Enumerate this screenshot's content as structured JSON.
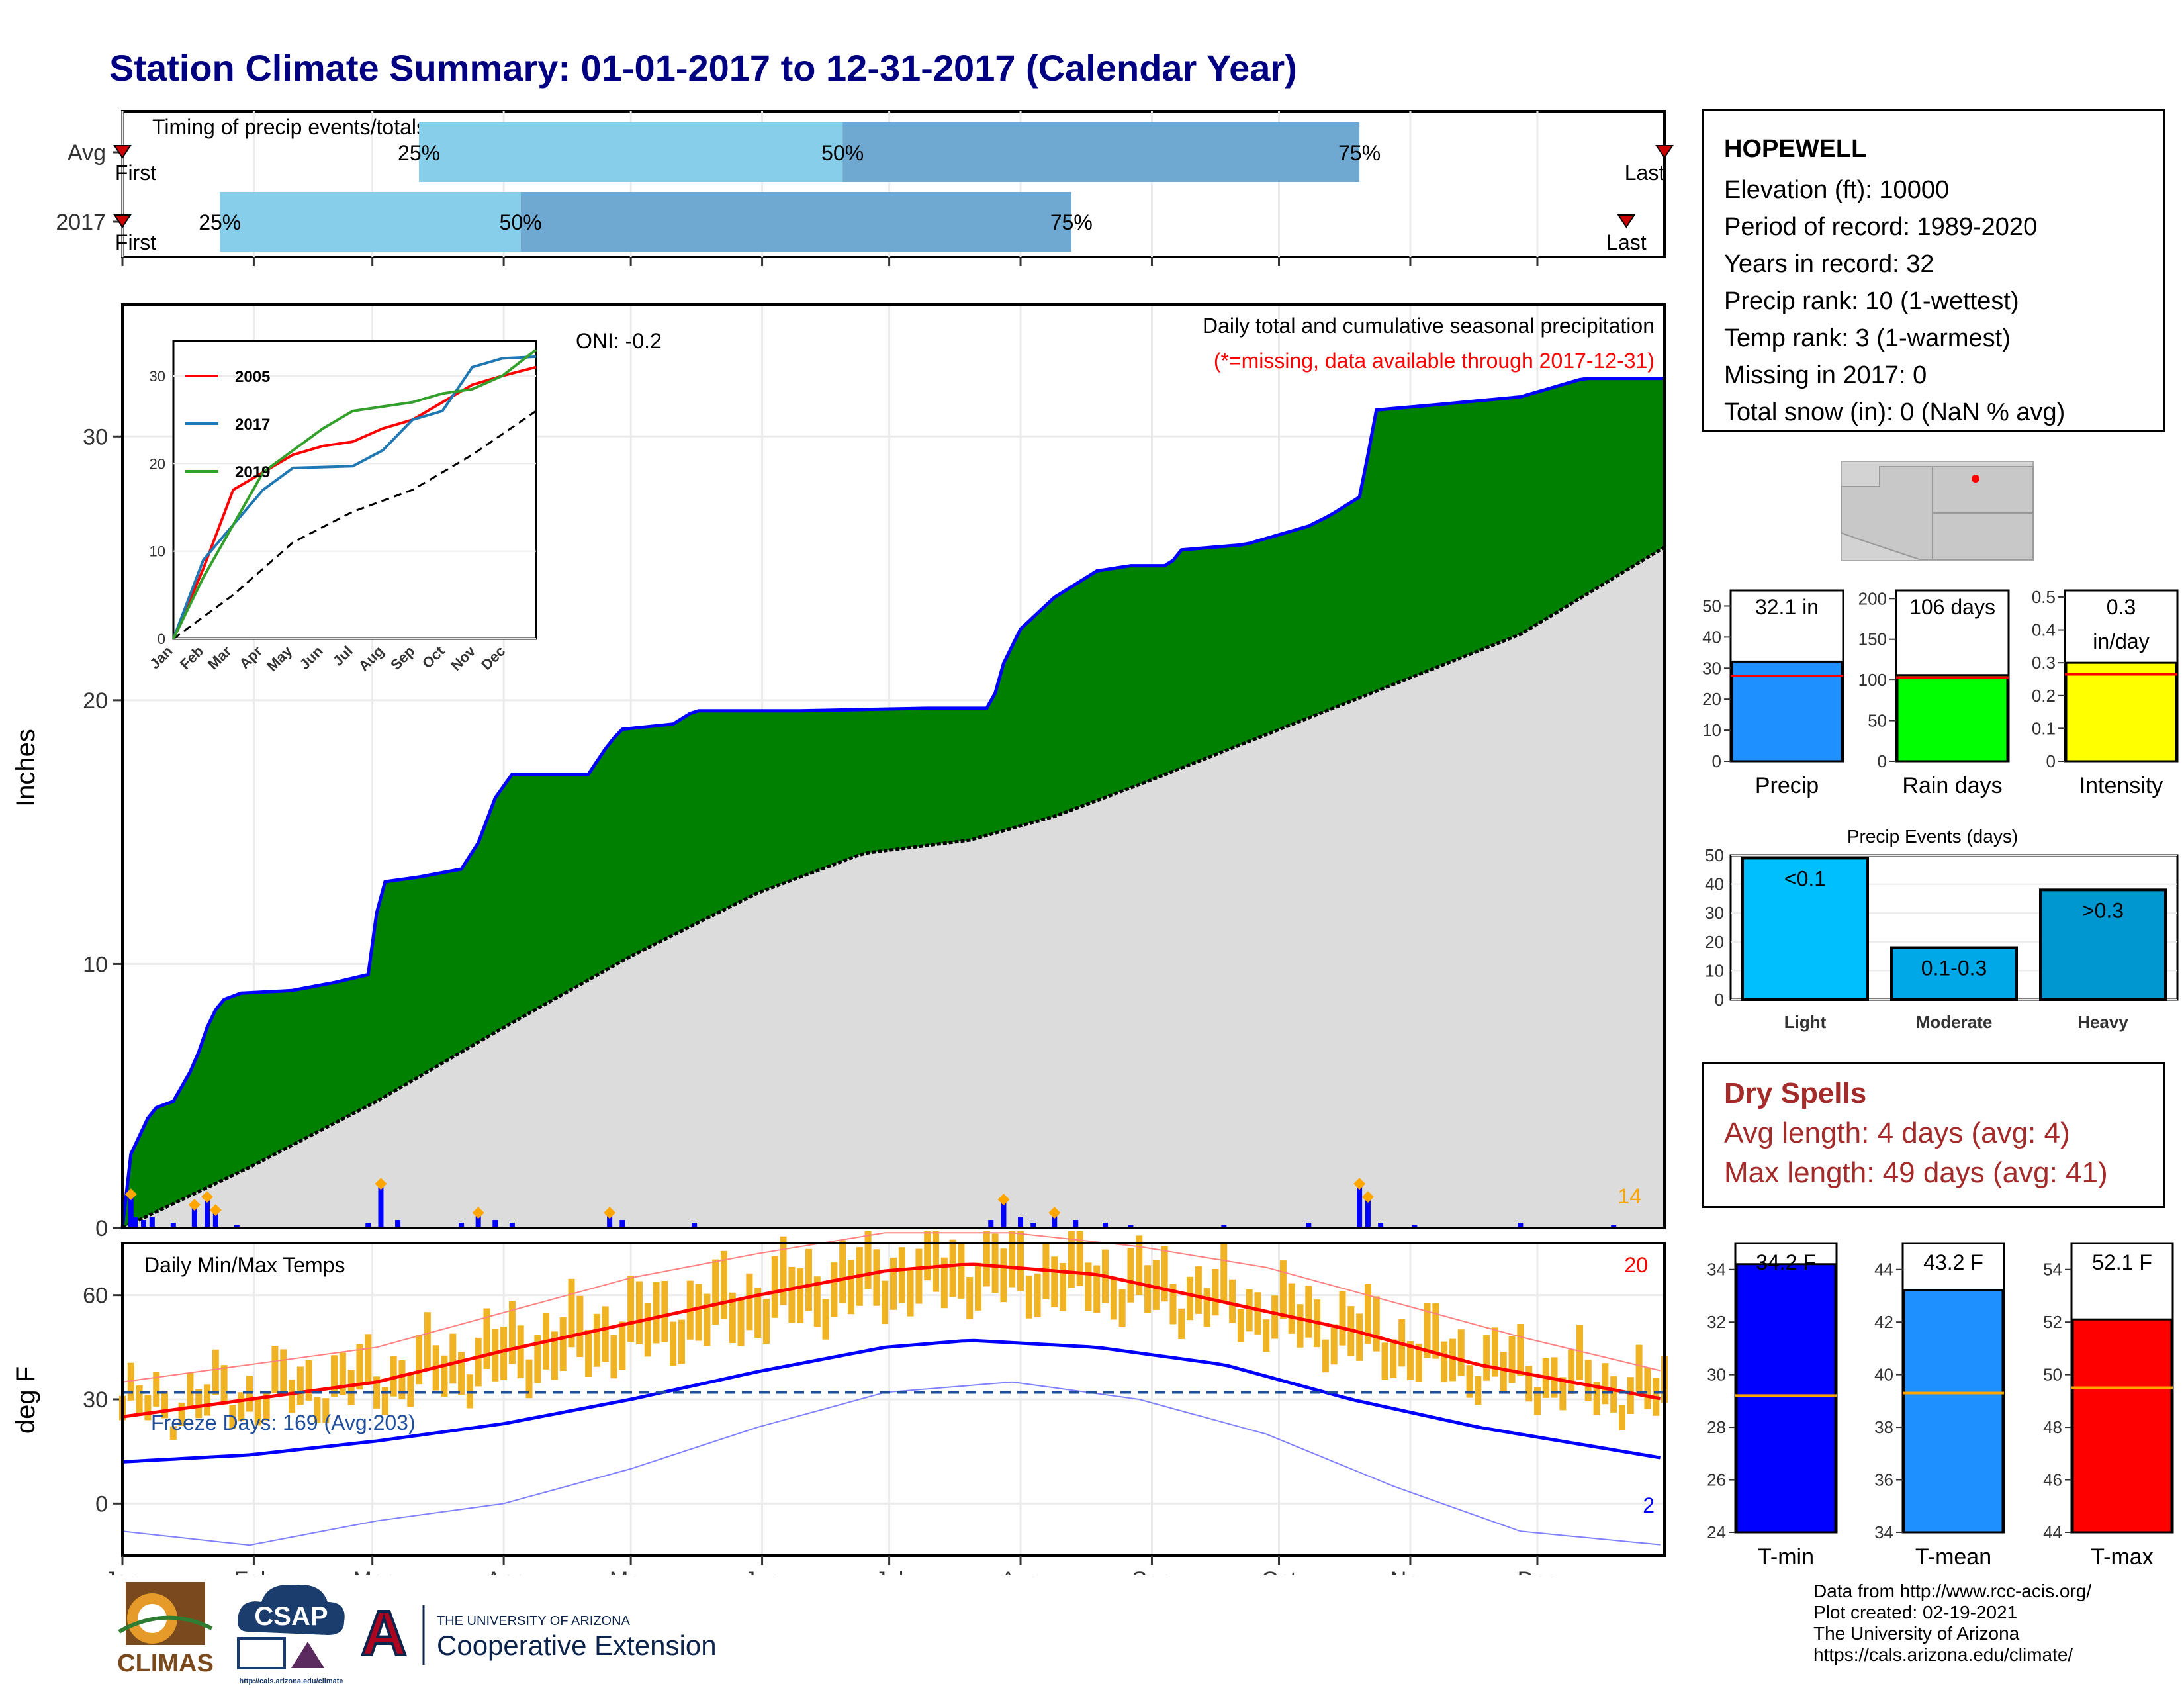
{
  "title": "Station Climate Summary: 01-01-2017 to 12-31-2017 (Calendar Year)",
  "station": {
    "name": "HOPEWELL",
    "lines": [
      "Elevation (ft): 10000",
      "Period of record: 1989-2020",
      "Years in record: 32",
      "Precip rank: 10 (1-wettest)",
      "Temp rank: 3 (1-warmest)",
      "Missing in 2017: 0",
      "Total snow (in): 0 (NaN % avg)"
    ]
  },
  "dry_spells": {
    "heading": "Dry Spells",
    "avg": "Avg length: 4 days (avg: 4)",
    "max": "Max length: 49 days (avg: 41)"
  },
  "footer": [
    "Data from http://www.rcc-acis.org/",
    "Plot created: 02-19-2021",
    "The University of Arizona",
    "https://cals.arizona.edu/climate/"
  ],
  "logos": {
    "climas": "CLIMAS",
    "csap": "CSAP",
    "csap_url": "http://cals.arizona.edu/climate",
    "ua_small": "THE UNIVERSITY OF ARIZONA",
    "ua_big": "Cooperative Extension",
    "ua_letter": "A"
  },
  "colors": {
    "navy": "#000080",
    "green": "#008000",
    "blue": "#0000ff",
    "lightblue": "#87ceeb",
    "steel": "#6fa8d0",
    "gold": "#f0b323",
    "red": "#ff0000",
    "drybrown": "#a52a2a"
  },
  "months": [
    "Jan",
    "Feb",
    "Mar",
    "Apr",
    "May",
    "Jun",
    "Jul",
    "Aug",
    "Sep",
    "Oct",
    "Nov",
    "Dec"
  ],
  "chart_data": [
    {
      "type": "bar",
      "title": "Timing of precip events/totals",
      "rows": [
        {
          "label": "Avg",
          "first": "First",
          "last": "Last",
          "q25_day": 70,
          "q50_day": 170,
          "q75_day": 292
        },
        {
          "label": "2017",
          "first": "First",
          "last": "Last",
          "q25_day": 23,
          "q50_day": 94,
          "q75_day": 224,
          "last_day": 355
        }
      ],
      "quartile_labels": [
        "25%",
        "50%",
        "75%"
      ]
    },
    {
      "type": "area",
      "title": "Daily total and cumulative seasonal precipitation",
      "subtitle": "(*=missing, data available through 2017-12-31)",
      "ylabel": "Inches",
      "ylim": [
        0,
        35
      ],
      "yticks": [
        0,
        10,
        20,
        30
      ],
      "oni": "ONI: -0.2",
      "extreme_count": "14",
      "cumulative_2017": [
        [
          0,
          0
        ],
        [
          2,
          2.8
        ],
        [
          7,
          4.5
        ],
        [
          12,
          4.8
        ],
        [
          17,
          6.2
        ],
        [
          20,
          7.6
        ],
        [
          23,
          8.6
        ],
        [
          28,
          8.9
        ],
        [
          40,
          9.0
        ],
        [
          50,
          9.3
        ],
        [
          58,
          9.6
        ],
        [
          61,
          13.1
        ],
        [
          70,
          13.3
        ],
        [
          80,
          13.6
        ],
        [
          84,
          14.6
        ],
        [
          88,
          16.3
        ],
        [
          92,
          17.2
        ],
        [
          110,
          17.2
        ],
        [
          115,
          18.4
        ],
        [
          118,
          18.9
        ],
        [
          130,
          19.1
        ],
        [
          135,
          19.6
        ],
        [
          160,
          19.6
        ],
        [
          190,
          19.7
        ],
        [
          205,
          19.7
        ],
        [
          208,
          21.4
        ],
        [
          212,
          22.7
        ],
        [
          220,
          23.9
        ],
        [
          230,
          24.9
        ],
        [
          238,
          25.1
        ],
        [
          247,
          25.1
        ],
        [
          250,
          25.7
        ],
        [
          265,
          25.9
        ],
        [
          280,
          26.6
        ],
        [
          285,
          27.0
        ],
        [
          292,
          27.7
        ],
        [
          294,
          29.3
        ],
        [
          296,
          31.0
        ],
        [
          310,
          31.2
        ],
        [
          330,
          31.5
        ],
        [
          345,
          32.2
        ],
        [
          364,
          32.2
        ]
      ],
      "cumulative_avg": [
        [
          0,
          0
        ],
        [
          30,
          2.3
        ],
        [
          60,
          4.8
        ],
        [
          90,
          7.6
        ],
        [
          120,
          10.3
        ],
        [
          150,
          12.7
        ],
        [
          175,
          14.2
        ],
        [
          200,
          14.7
        ],
        [
          220,
          15.6
        ],
        [
          240,
          16.8
        ],
        [
          270,
          18.7
        ],
        [
          300,
          20.6
        ],
        [
          330,
          22.5
        ],
        [
          364,
          25.8
        ]
      ],
      "daily_2017": [
        [
          2,
          1.2
        ],
        [
          3,
          0.4
        ],
        [
          5,
          0.3
        ],
        [
          7,
          0.4
        ],
        [
          12,
          0.2
        ],
        [
          17,
          0.8
        ],
        [
          20,
          1.1
        ],
        [
          22,
          0.6
        ],
        [
          27,
          0.1
        ],
        [
          58,
          0.2
        ],
        [
          61,
          1.6
        ],
        [
          65,
          0.3
        ],
        [
          80,
          0.2
        ],
        [
          84,
          0.5
        ],
        [
          88,
          0.3
        ],
        [
          92,
          0.2
        ],
        [
          115,
          0.5
        ],
        [
          118,
          0.3
        ],
        [
          135,
          0.2
        ],
        [
          205,
          0.3
        ],
        [
          208,
          1.0
        ],
        [
          212,
          0.4
        ],
        [
          215,
          0.2
        ],
        [
          220,
          0.5
        ],
        [
          225,
          0.3
        ],
        [
          232,
          0.2
        ],
        [
          238,
          0.1
        ],
        [
          260,
          0.1
        ],
        [
          280,
          0.2
        ],
        [
          292,
          1.6
        ],
        [
          294,
          1.1
        ],
        [
          297,
          0.2
        ],
        [
          305,
          0.1
        ],
        [
          330,
          0.2
        ],
        [
          352,
          0.1
        ]
      ],
      "inset": {
        "type": "line",
        "ylim": [
          0,
          34
        ],
        "yticks": [
          0,
          10,
          20,
          30
        ],
        "series": [
          {
            "name": "2005",
            "color": "#ff0000",
            "values": [
              [
                0,
                0
              ],
              [
                30,
                8
              ],
              [
                60,
                17
              ],
              [
                90,
                19
              ],
              [
                120,
                21
              ],
              [
                150,
                22
              ],
              [
                180,
                22.5
              ],
              [
                210,
                24
              ],
              [
                240,
                25
              ],
              [
                270,
                27
              ],
              [
                300,
                29
              ],
              [
                330,
                30
              ],
              [
                364,
                31
              ]
            ]
          },
          {
            "name": "2017",
            "color": "#1f78b4",
            "values": [
              [
                0,
                0
              ],
              [
                30,
                9
              ],
              [
                60,
                13
              ],
              [
                90,
                17
              ],
              [
                120,
                19.5
              ],
              [
                150,
                19.6
              ],
              [
                180,
                19.7
              ],
              [
                210,
                21.5
              ],
              [
                240,
                25
              ],
              [
                270,
                26
              ],
              [
                300,
                31
              ],
              [
                330,
                32
              ],
              [
                364,
                32.2
              ]
            ]
          },
          {
            "name": "2019",
            "color": "#33a02c",
            "values": [
              [
                0,
                0
              ],
              [
                30,
                7
              ],
              [
                60,
                13
              ],
              [
                90,
                19
              ],
              [
                120,
                21.5
              ],
              [
                150,
                24
              ],
              [
                180,
                26
              ],
              [
                210,
                26.5
              ],
              [
                240,
                27
              ],
              [
                270,
                28
              ],
              [
                300,
                28.5
              ],
              [
                330,
                30
              ],
              [
                364,
                33
              ]
            ]
          }
        ],
        "avg_values": [
          [
            0,
            0
          ],
          [
            60,
            5
          ],
          [
            120,
            11
          ],
          [
            180,
            14.5
          ],
          [
            240,
            17
          ],
          [
            300,
            21
          ],
          [
            364,
            26
          ]
        ]
      }
    },
    {
      "type": "line",
      "title": "Daily Min/Max Temps",
      "ylabel": "deg F",
      "ylim": [
        -15,
        75
      ],
      "yticks": [
        0,
        30,
        60
      ],
      "freeze_label": "Freeze Days: 169 (Avg:203)",
      "record_high_count": "20",
      "record_low_count": "2",
      "freeze_line": 32,
      "avg_max": [
        [
          0,
          25
        ],
        [
          30,
          30
        ],
        [
          60,
          35
        ],
        [
          90,
          44
        ],
        [
          120,
          52
        ],
        [
          150,
          60
        ],
        [
          180,
          67
        ],
        [
          200,
          69
        ],
        [
          230,
          66
        ],
        [
          260,
          58
        ],
        [
          290,
          50
        ],
        [
          320,
          40
        ],
        [
          364,
          30
        ]
      ],
      "avg_min": [
        [
          0,
          12
        ],
        [
          30,
          14
        ],
        [
          60,
          18
        ],
        [
          90,
          23
        ],
        [
          120,
          30
        ],
        [
          150,
          38
        ],
        [
          180,
          45
        ],
        [
          200,
          47
        ],
        [
          230,
          45
        ],
        [
          260,
          40
        ],
        [
          290,
          30
        ],
        [
          320,
          22
        ],
        [
          364,
          13
        ]
      ],
      "rec_max": [
        [
          0,
          35
        ],
        [
          30,
          40
        ],
        [
          60,
          45
        ],
        [
          90,
          55
        ],
        [
          120,
          65
        ],
        [
          150,
          72
        ],
        [
          180,
          78
        ],
        [
          210,
          78
        ],
        [
          240,
          74
        ],
        [
          270,
          68
        ],
        [
          300,
          58
        ],
        [
          330,
          48
        ],
        [
          364,
          38
        ]
      ],
      "rec_min": [
        [
          0,
          -8
        ],
        [
          30,
          -12
        ],
        [
          60,
          -5
        ],
        [
          90,
          0
        ],
        [
          120,
          10
        ],
        [
          150,
          22
        ],
        [
          180,
          32
        ],
        [
          210,
          35
        ],
        [
          240,
          30
        ],
        [
          270,
          20
        ],
        [
          300,
          5
        ],
        [
          330,
          -8
        ],
        [
          364,
          -12
        ]
      ]
    },
    {
      "type": "bar",
      "categories": [
        "Precip",
        "Rain days",
        "Intensity"
      ],
      "values": [
        32.1,
        106,
        0.3
      ],
      "averages": [
        27.5,
        103,
        0.265
      ],
      "labels": [
        "32.1 in",
        "106 days",
        "0.3\nin/day"
      ],
      "ylims": [
        [
          0,
          55
        ],
        [
          0,
          210
        ],
        [
          0,
          0.52
        ]
      ],
      "yticks": [
        [
          0,
          10,
          20,
          30,
          40,
          50
        ],
        [
          0,
          50,
          100,
          150,
          200
        ],
        [
          0.0,
          0.1,
          0.2,
          0.3,
          0.4,
          0.5
        ]
      ]
    },
    {
      "type": "bar",
      "title": "Precip Events (days)",
      "categories": [
        "Light",
        "Moderate",
        "Heavy"
      ],
      "labels": [
        "<0.1",
        "0.1-0.3",
        ">0.3"
      ],
      "values": [
        49,
        18,
        38
      ],
      "ylim": [
        0,
        50
      ],
      "yticks": [
        0,
        10,
        20,
        30,
        40,
        50
      ]
    },
    {
      "type": "bar",
      "categories": [
        "T-min",
        "T-mean",
        "T-max"
      ],
      "values": [
        34.2,
        43.2,
        52.1
      ],
      "labels": [
        "34.2 F",
        "43.2 F",
        "52.1 F"
      ],
      "averages": [
        29.2,
        39.3,
        49.5
      ],
      "ylims": [
        [
          24,
          35
        ],
        [
          34,
          45
        ],
        [
          44,
          55
        ]
      ],
      "yticks": [
        [
          24,
          26,
          28,
          30,
          32,
          34
        ],
        [
          34,
          36,
          38,
          40,
          42,
          44
        ],
        [
          44,
          46,
          48,
          50,
          52,
          54
        ]
      ]
    }
  ]
}
